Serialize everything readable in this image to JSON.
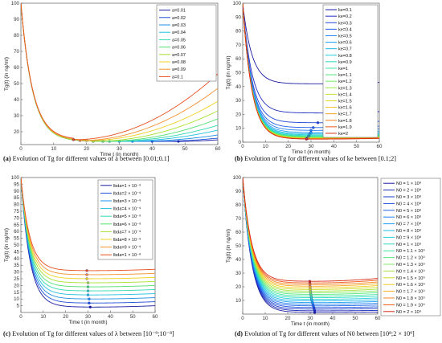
{
  "chart_data": [
    {
      "type": "line",
      "xlabel": "Time t (in month)",
      "ylabel": "Tg(t) (in ng/ml)",
      "xlim": [
        0,
        60
      ],
      "ylim": [
        12,
        100
      ],
      "xticks": [
        "0",
        "10",
        "20",
        "30",
        "40",
        "50",
        "60"
      ],
      "yticks": [
        "20",
        "30",
        "40",
        "50",
        "60",
        "70",
        "80",
        "90",
        "100"
      ],
      "legend_position": "top-right",
      "caption_prefix": "(a)",
      "caption_text": " Evolution of Tg for different values of a between [0.01;0.1]",
      "series": [
        {
          "name": "a=0.01",
          "color": "#1a1aa0",
          "min_t": 48,
          "min_v": 14,
          "end_v": 15
        },
        {
          "name": "a=0.02",
          "color": "#1f4fd8",
          "min_t": 40,
          "min_v": 14,
          "end_v": 16
        },
        {
          "name": "a=0.03",
          "color": "#1e90e8",
          "min_t": 34,
          "min_v": 14,
          "end_v": 18
        },
        {
          "name": "a=0.04",
          "color": "#20c0e0",
          "min_t": 30,
          "min_v": 14,
          "end_v": 21
        },
        {
          "name": "a=0.05",
          "color": "#30d8b0",
          "min_t": 27,
          "min_v": 14,
          "end_v": 24
        },
        {
          "name": "a=0.06",
          "color": "#50e070",
          "min_t": 25,
          "min_v": 14,
          "end_v": 28
        },
        {
          "name": "a=0.07",
          "color": "#a8e030",
          "min_t": 22,
          "min_v": 14,
          "end_v": 33
        },
        {
          "name": "a=0.08",
          "color": "#f0d020",
          "min_t": 20,
          "min_v": 14.5,
          "end_v": 39
        },
        {
          "name": "a=0.09",
          "color": "#f59030",
          "min_t": 18,
          "min_v": 14.5,
          "end_v": 47
        },
        {
          "name": "a=0.1",
          "color": "#e85020",
          "min_t": 16,
          "min_v": 15,
          "end_v": 56
        }
      ]
    },
    {
      "type": "line",
      "xlabel": "Time t (in month)",
      "ylabel": "Tg(t) (in ng/ml)",
      "xlim": [
        0,
        60
      ],
      "ylim": [
        0,
        100
      ],
      "xticks": [
        "0",
        "10",
        "20",
        "30",
        "40",
        "50",
        "60"
      ],
      "yticks": [
        "0",
        "10",
        "20",
        "30",
        "40",
        "50",
        "60",
        "70",
        "80",
        "90",
        "100"
      ],
      "legend_position": "top-right",
      "caption_prefix": "(b)",
      "caption_text": " Evolution of Tg for different values of ke between [0.1;2]",
      "series": [
        {
          "name": "ke=0.1",
          "color": "#1a1aa0",
          "min_t": 45,
          "min_v": 42,
          "end_v": 43
        },
        {
          "name": "ke=0.2",
          "color": "#1e2ec0",
          "min_t": 36,
          "min_v": 21,
          "end_v": 22
        },
        {
          "name": "ke=0.3",
          "color": "#1f45d8",
          "min_t": 33,
          "min_v": 14,
          "end_v": 15
        },
        {
          "name": "ke=0.4",
          "color": "#1f5fe8",
          "min_t": 31,
          "min_v": 10.5,
          "end_v": 11.5
        },
        {
          "name": "ke=0.5",
          "color": "#1f7ff0",
          "min_t": 30,
          "min_v": 8.5,
          "end_v": 9.5
        },
        {
          "name": "ke=0.6",
          "color": "#1f9ff0",
          "min_t": 30,
          "min_v": 7,
          "end_v": 8
        },
        {
          "name": "ke=0.7",
          "color": "#20b8e8",
          "min_t": 29.5,
          "min_v": 6,
          "end_v": 7
        },
        {
          "name": "ke=0.8",
          "color": "#20cfd8",
          "min_t": 29.5,
          "min_v": 5.3,
          "end_v": 6.2
        },
        {
          "name": "ke=0.9",
          "color": "#28dcc0",
          "min_t": 29,
          "min_v": 4.7,
          "end_v": 5.6
        },
        {
          "name": "ke=1",
          "color": "#38e4a0",
          "min_t": 29,
          "min_v": 4.2,
          "end_v": 5
        },
        {
          "name": "ke=1.1",
          "color": "#50e880",
          "min_t": 29,
          "min_v": 3.8,
          "end_v": 4.6
        },
        {
          "name": "ke=1.2",
          "color": "#70ea60",
          "min_t": 29,
          "min_v": 3.5,
          "end_v": 4.2
        },
        {
          "name": "ke=1.3",
          "color": "#98e840",
          "min_t": 28.5,
          "min_v": 3.2,
          "end_v": 3.9
        },
        {
          "name": "ke=1.4",
          "color": "#c0e030",
          "min_t": 28.5,
          "min_v": 3,
          "end_v": 3.6
        },
        {
          "name": "ke=1.5",
          "color": "#e0d820",
          "min_t": 28.5,
          "min_v": 2.8,
          "end_v": 3.4
        },
        {
          "name": "ke=1.6",
          "color": "#f5c020",
          "min_t": 28.5,
          "min_v": 2.6,
          "end_v": 3.2
        },
        {
          "name": "ke=1.7",
          "color": "#f8a020",
          "min_t": 28,
          "min_v": 2.5,
          "end_v": 3
        },
        {
          "name": "ke=1.8",
          "color": "#f58020",
          "min_t": 28,
          "min_v": 2.4,
          "end_v": 2.9
        },
        {
          "name": "ke=1.9",
          "color": "#ee5818",
          "min_t": 28,
          "min_v": 2.3,
          "end_v": 2.8
        },
        {
          "name": "ke=2",
          "color": "#d83010",
          "min_t": 28,
          "min_v": 2.2,
          "end_v": 2.7
        }
      ]
    },
    {
      "type": "line",
      "xlabel": "Time t (in month)",
      "ylabel": "Tg(t) (in ng/ml)",
      "xlim": [
        0,
        60
      ],
      "ylim": [
        0,
        100
      ],
      "xticks": [
        "0",
        "10",
        "20",
        "30",
        "40",
        "50",
        "60"
      ],
      "yticks": [
        "5",
        "10",
        "15",
        "20",
        "25",
        "30",
        "35",
        "40",
        "45",
        "50",
        "55",
        "60",
        "65",
        "70",
        "75",
        "80",
        "85",
        "90",
        "95",
        "100"
      ],
      "legend_position": "top-right",
      "caption_prefix": "(c)",
      "caption_text": " Evolution of Tg for different values of λ between [10⁻⁹;10⁻⁸]",
      "series": [
        {
          "name": "lbda=1 × 10⁻⁹",
          "color": "#1a1aa0",
          "min_t": 31,
          "min_v": 4,
          "end_v": 5
        },
        {
          "name": "lbda=2 × 10⁻⁹",
          "color": "#1f4fd8",
          "min_t": 30.5,
          "min_v": 7,
          "end_v": 8
        },
        {
          "name": "lbda=3 × 10⁻⁹",
          "color": "#1e90e8",
          "min_t": 30.5,
          "min_v": 10,
          "end_v": 11
        },
        {
          "name": "lbda=4 × 10⁻⁹",
          "color": "#20c0e0",
          "min_t": 30,
          "min_v": 13,
          "end_v": 14
        },
        {
          "name": "lbda=5 × 10⁻⁹",
          "color": "#30d8b0",
          "min_t": 30,
          "min_v": 16,
          "end_v": 17
        },
        {
          "name": "lbda=6 × 10⁻⁹",
          "color": "#50e070",
          "min_t": 30,
          "min_v": 19,
          "end_v": 20
        },
        {
          "name": "lbda=7 × 10⁻⁹",
          "color": "#a8e030",
          "min_t": 30,
          "min_v": 22,
          "end_v": 23
        },
        {
          "name": "lbda=8 × 10⁻⁹",
          "color": "#f0d020",
          "min_t": 29.5,
          "min_v": 25,
          "end_v": 26
        },
        {
          "name": "lbda=9 × 10⁻⁹",
          "color": "#f59030",
          "min_t": 29.5,
          "min_v": 28,
          "end_v": 29
        },
        {
          "name": "lbda=1 × 10⁻⁸",
          "color": "#e85020",
          "min_t": 29.5,
          "min_v": 31,
          "end_v": 32
        }
      ]
    },
    {
      "type": "line",
      "xlabel": "Time t (in month)",
      "ylabel": "Tg(t) (in ng/ml)",
      "xlim": [
        0,
        60
      ],
      "ylim": [
        0,
        100
      ],
      "xticks": [
        "0",
        "10",
        "20",
        "30",
        "40",
        "50",
        "60"
      ],
      "yticks": [
        "10",
        "20",
        "30",
        "40",
        "50",
        "60",
        "70",
        "80",
        "90",
        "100"
      ],
      "legend_position": "right-outside",
      "caption_prefix": "(d)",
      "caption_text": " Evolution of Tg for different values of N0 between [10⁸;2 × 10⁹]",
      "series": [
        {
          "name": "N0 = 1 × 10⁸",
          "color": "#1a1aa0",
          "min_t": 32,
          "min_v": 1.2,
          "end_v": 1.4
        },
        {
          "name": "N0 = 2 × 10⁸",
          "color": "#1c2ab8",
          "min_t": 32,
          "min_v": 2.4,
          "end_v": 2.7
        },
        {
          "name": "N0 = 3 × 10⁸",
          "color": "#1e3ccc",
          "min_t": 31.8,
          "min_v": 3.6,
          "end_v": 4
        },
        {
          "name": "N0 = 4 × 10⁸",
          "color": "#1f50dc",
          "min_t": 31.6,
          "min_v": 4.8,
          "end_v": 5.3
        },
        {
          "name": "N0 = 5 × 10⁸",
          "color": "#1f66e8",
          "min_t": 31.4,
          "min_v": 6,
          "end_v": 6.6
        },
        {
          "name": "N0 = 6 × 10⁸",
          "color": "#1f80f0",
          "min_t": 31.2,
          "min_v": 7.2,
          "end_v": 7.9
        },
        {
          "name": "N0 = 7 × 10⁸",
          "color": "#1f9ef0",
          "min_t": 31,
          "min_v": 8.4,
          "end_v": 9.2
        },
        {
          "name": "N0 = 8 × 10⁸",
          "color": "#20b8e8",
          "min_t": 30.8,
          "min_v": 9.6,
          "end_v": 10.5
        },
        {
          "name": "N0 = 9 × 10⁸",
          "color": "#24cfd8",
          "min_t": 30.6,
          "min_v": 10.8,
          "end_v": 11.8
        },
        {
          "name": "N0 = 1 × 10⁹",
          "color": "#2cdcc0",
          "min_t": 30.5,
          "min_v": 12,
          "end_v": 13.1
        },
        {
          "name": "N0 = 1.1 × 10⁹",
          "color": "#40e4a0",
          "min_t": 30.4,
          "min_v": 13.2,
          "end_v": 14.4
        },
        {
          "name": "N0 = 1.2 × 10⁹",
          "color": "#5ae880",
          "min_t": 30.3,
          "min_v": 14.4,
          "end_v": 15.7
        },
        {
          "name": "N0 = 1.3 × 10⁹",
          "color": "#80ea60",
          "min_t": 30.2,
          "min_v": 15.6,
          "end_v": 17
        },
        {
          "name": "N0 = 1.4 × 10⁹",
          "color": "#a8e440",
          "min_t": 30.1,
          "min_v": 16.8,
          "end_v": 18.3
        },
        {
          "name": "N0 = 1.5 × 10⁹",
          "color": "#d0dc28",
          "min_t": 30,
          "min_v": 18,
          "end_v": 19.6
        },
        {
          "name": "N0 = 1.6 × 10⁹",
          "color": "#f0cc20",
          "min_t": 30,
          "min_v": 19.2,
          "end_v": 20.9
        },
        {
          "name": "N0 = 1.7 × 10⁹",
          "color": "#f8aa20",
          "min_t": 29.9,
          "min_v": 20.4,
          "end_v": 22.2
        },
        {
          "name": "N0 = 1.8 × 10⁹",
          "color": "#f58420",
          "min_t": 29.9,
          "min_v": 21.6,
          "end_v": 23.5
        },
        {
          "name": "N0 = 1.9 × 10⁹",
          "color": "#ee5818",
          "min_t": 29.8,
          "min_v": 22.8,
          "end_v": 24.8
        },
        {
          "name": "N0 = 2 × 10⁹",
          "color": "#d82810",
          "min_t": 29.8,
          "min_v": 24,
          "end_v": 26.1
        }
      ]
    }
  ]
}
